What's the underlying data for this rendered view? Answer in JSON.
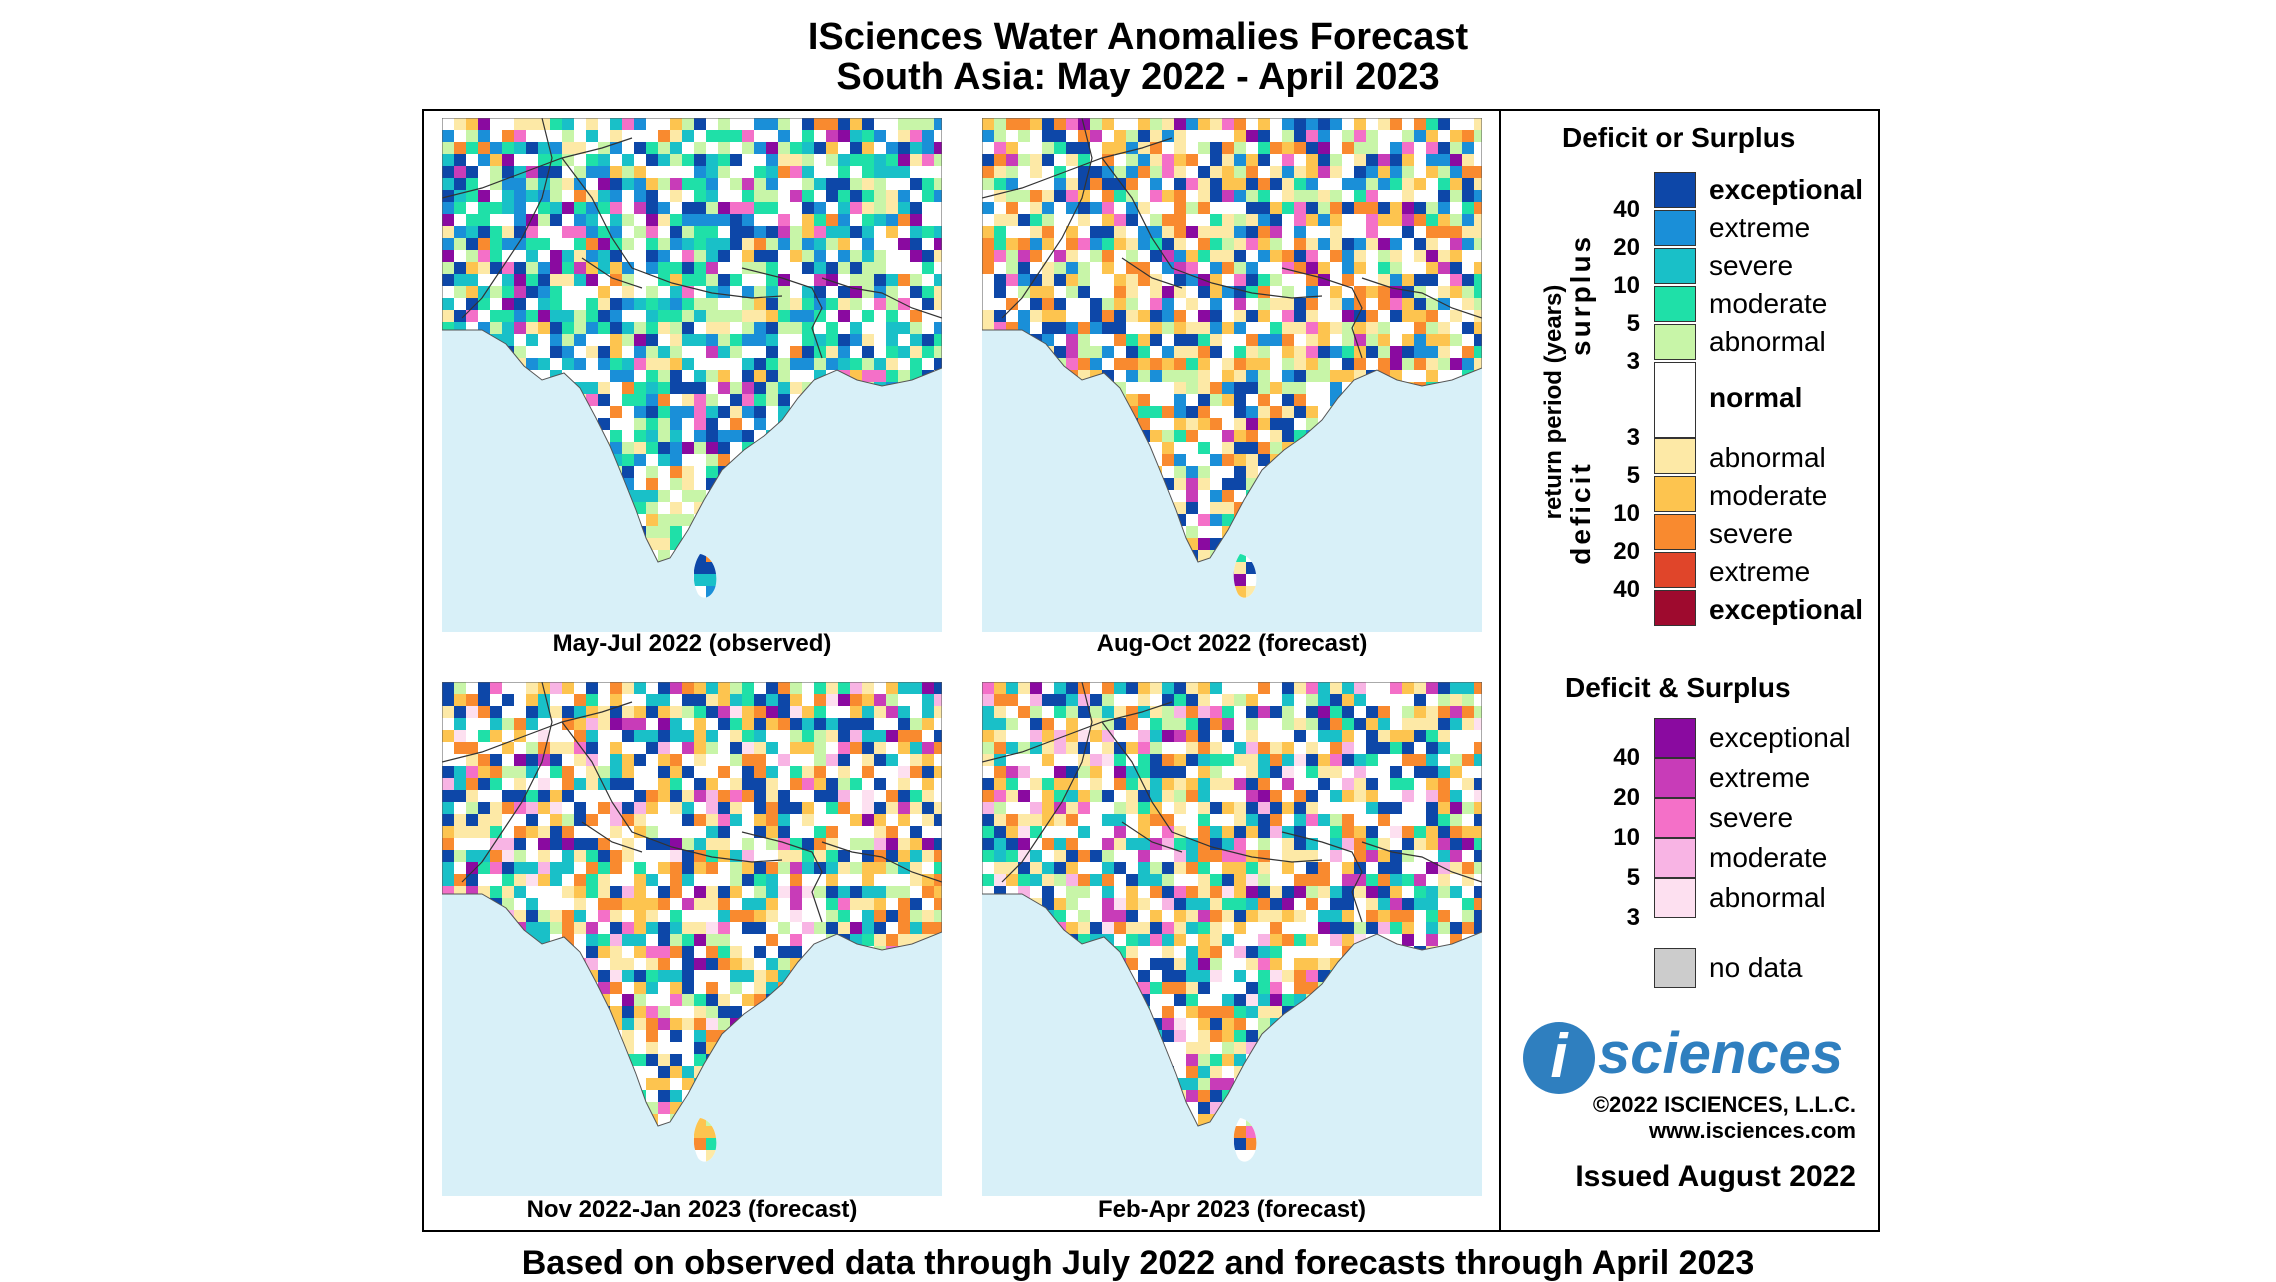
{
  "title_line1": "ISciences Water Anomalies Forecast",
  "title_line2": "South Asia: May 2022 - April 2023",
  "maps": [
    {
      "caption": "May-Jul 2022 (observed)"
    },
    {
      "caption": "Aug-Oct 2022 (forecast)"
    },
    {
      "caption": "Nov 2022-Jan 2023 (forecast)"
    },
    {
      "caption": "Feb-Apr 2023 (forecast)"
    }
  ],
  "legend1": {
    "heading": "Deficit or Surplus",
    "axis_label": "return period (years)",
    "surplus_label": "surplus",
    "deficit_label": "deficit",
    "entries": [
      {
        "label": "exceptional",
        "color": "#0d47a8"
      },
      {
        "label": "extreme",
        "color": "#1a8fd8"
      },
      {
        "label": "severe",
        "color": "#19c0c8"
      },
      {
        "label": "moderate",
        "color": "#1fe0a8"
      },
      {
        "label": "abnormal",
        "color": "#c8f5a8"
      },
      {
        "label": "normal",
        "color": "#ffffff"
      },
      {
        "label": "abnormal",
        "color": "#fde9a6"
      },
      {
        "label": "moderate",
        "color": "#fdc44f"
      },
      {
        "label": "severe",
        "color": "#f98a2f"
      },
      {
        "label": "extreme",
        "color": "#e0452a"
      },
      {
        "label": "exceptional",
        "color": "#9e0a2e"
      }
    ],
    "surplus_ticks": [
      "40",
      "20",
      "10",
      "5",
      "3"
    ],
    "deficit_ticks": [
      "3",
      "5",
      "10",
      "20",
      "40"
    ]
  },
  "legend2": {
    "heading": "Deficit & Surplus",
    "entries": [
      {
        "label": "exceptional",
        "color": "#8a0aa0"
      },
      {
        "label": "extreme",
        "color": "#c83cb8"
      },
      {
        "label": "severe",
        "color": "#f470c8"
      },
      {
        "label": "moderate",
        "color": "#f8b4e4"
      },
      {
        "label": "abnormal",
        "color": "#fde0f0"
      }
    ],
    "ticks": [
      "40",
      "20",
      "10",
      "5",
      "3"
    ]
  },
  "no_data": {
    "label": "no data",
    "color": "#cccccc"
  },
  "logo": {
    "letter": "i",
    "text": "sciences"
  },
  "copyright": "©2022 ISCIENCES, L.L.C.",
  "website": "www.isciences.com",
  "issued": "Issued August 2022",
  "footer": "Based on observed data through July 2022 and forecasts through April 2023"
}
